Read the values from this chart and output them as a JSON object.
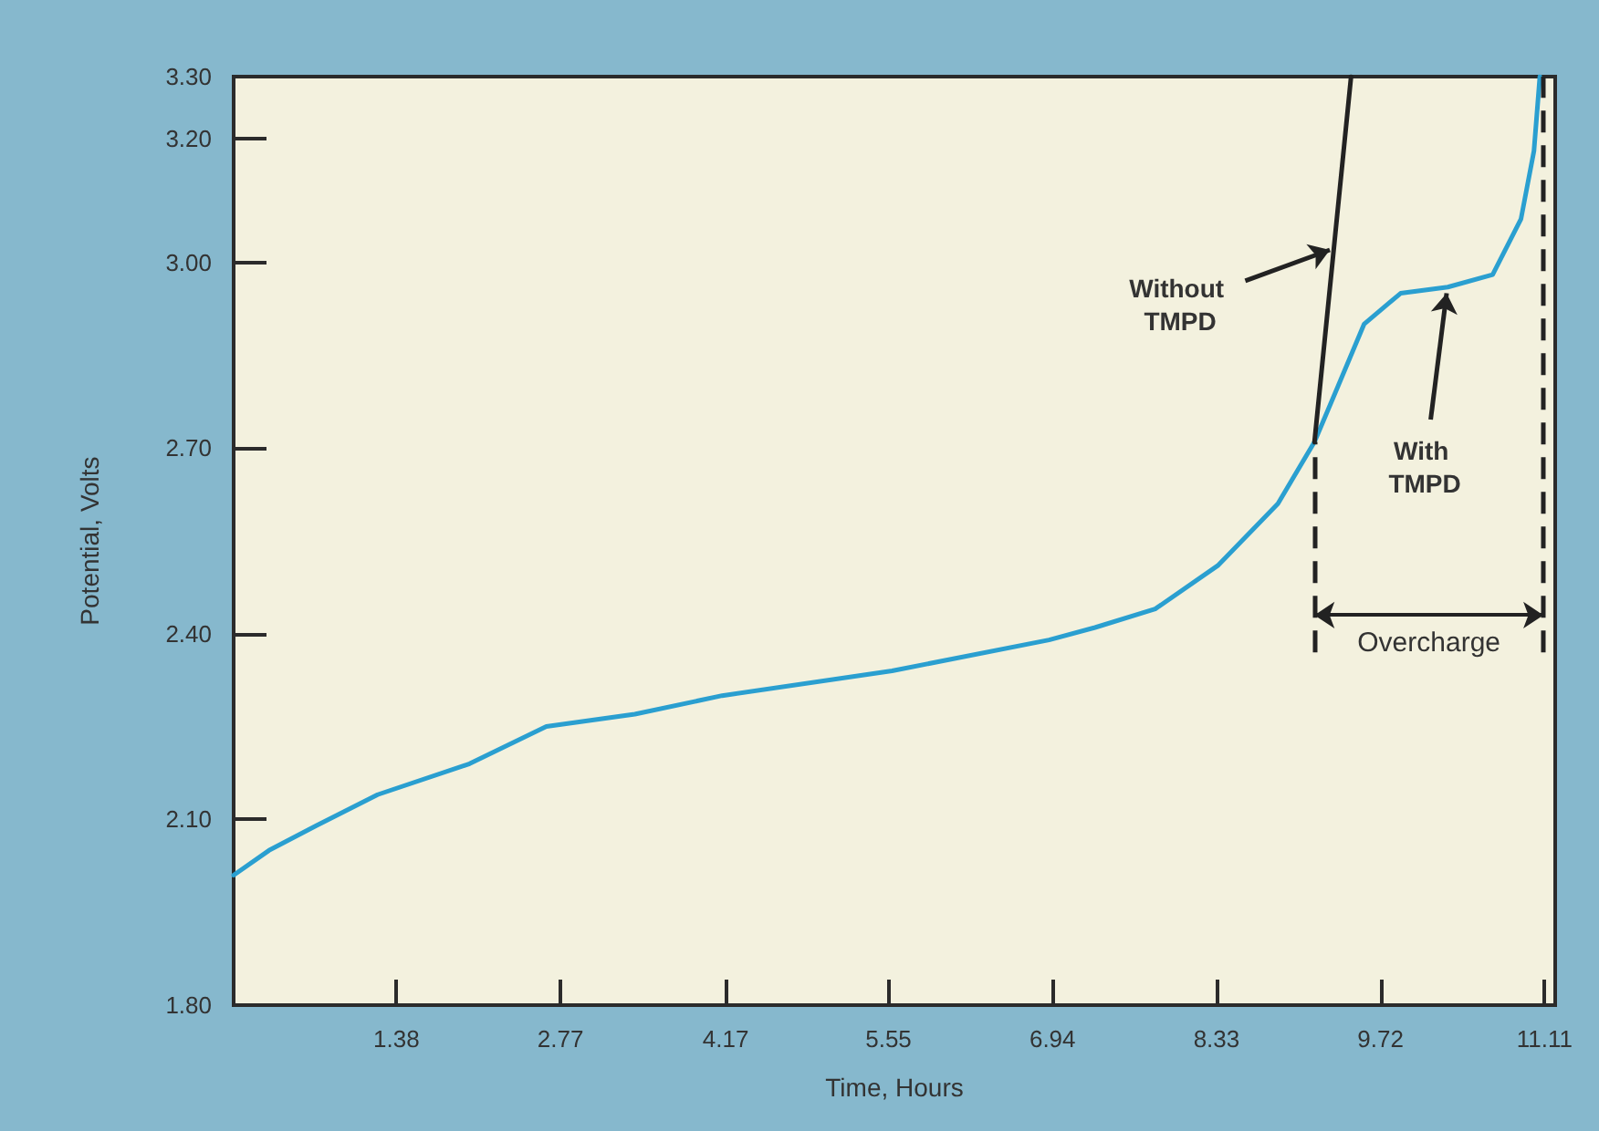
{
  "chart_data": {
    "type": "line",
    "xlabel": "Time, Hours",
    "ylabel": "Potential, Volts",
    "xlim": [
      0,
      11.2
    ],
    "xticks": [
      1.38,
      2.77,
      4.17,
      5.55,
      6.94,
      8.33,
      9.72,
      11.11
    ],
    "ylim": [
      1.8,
      3.3
    ],
    "yticks": [
      {
        "value": 1.8,
        "label": "1.80"
      },
      {
        "value": 2.1,
        "label": "2.10"
      },
      {
        "value": 2.4,
        "label": "2.40"
      },
      {
        "value": 2.7,
        "label": "2.70"
      },
      {
        "value": 3,
        "label": "3.00"
      },
      {
        "value": 3.2,
        "label": "3.20"
      },
      {
        "value": 3.3,
        "label": "3.30"
      }
    ],
    "marker": "none",
    "line_style": "solid",
    "series": [
      {
        "color": "#2a9fd0",
        "x": [
          0,
          0.3,
          0.7,
          1.22,
          2.0,
          2.65,
          3.4,
          4.14,
          5.58,
          6.91,
          7.3,
          7.81,
          8.34,
          8.85,
          9.16,
          9.36,
          9.58,
          9.89,
          10.29,
          10.67,
          10.91,
          11.02,
          11.07
        ],
        "values": [
          2.01,
          2.05,
          2.09,
          2.14,
          2.19,
          2.25,
          2.27,
          2.3,
          2.34,
          2.39,
          2.41,
          2.44,
          2.51,
          2.61,
          2.71,
          2.8,
          2.9,
          2.95,
          2.96,
          2.98,
          3.07,
          3.18,
          3.3
        ]
      },
      {
        "color": "#222222",
        "x": [
          9.16,
          9.47
        ],
        "values": [
          2.71,
          3.3
        ]
      }
    ],
    "ref_lines": [
      {
        "axis": "x",
        "value": 9.16,
        "line_style": "dashed",
        "color": "#222222"
      },
      {
        "axis": "x",
        "value": 11.1,
        "line_style": "dashed",
        "color": "#222222"
      }
    ],
    "annotations": [
      {
        "text": "Without TMPD",
        "x": 9.29,
        "y": 3.02
      },
      {
        "text": "With TMPD",
        "x": 10.28,
        "y": 2.95
      },
      "Overcharge"
    ]
  }
}
